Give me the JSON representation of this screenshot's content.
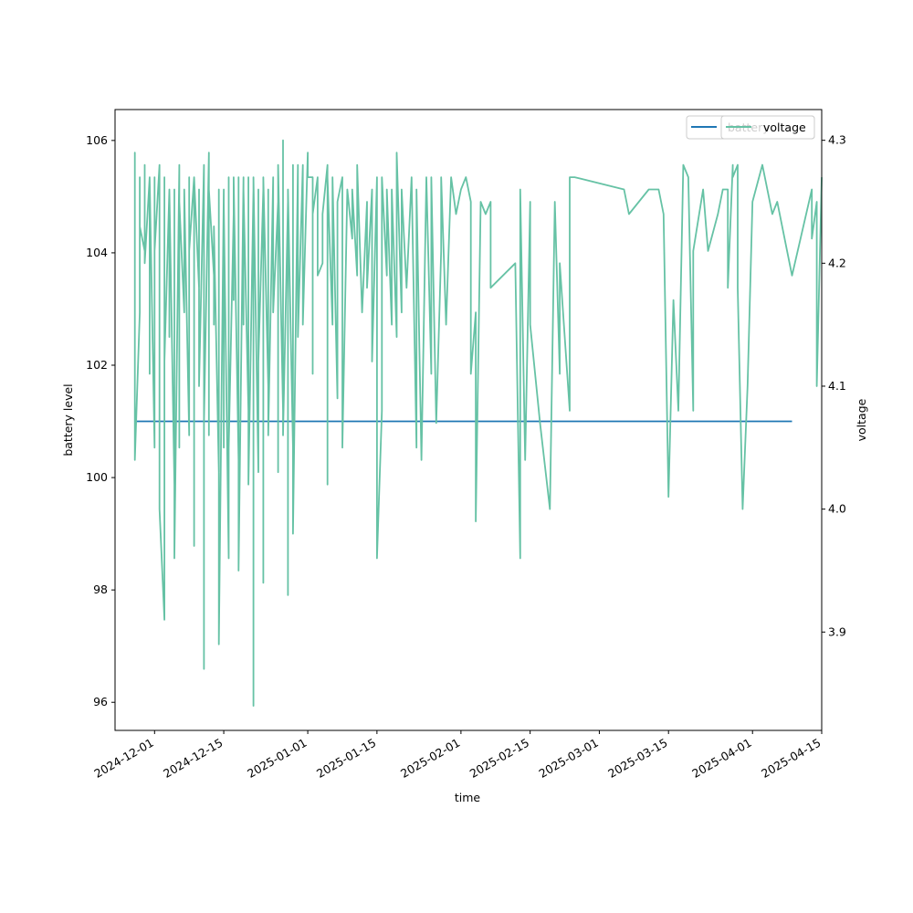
{
  "chart_data": {
    "type": "line",
    "xlabel": "time",
    "ylabel": "battery level",
    "y2label": "voltage",
    "xlim": [
      "2024-11-23",
      "2025-04-15"
    ],
    "ylim": [
      95.5,
      106.55
    ],
    "y2lim": [
      3.82,
      4.325
    ],
    "x_ticks": [
      "2024-12-01",
      "2024-12-15",
      "2025-01-01",
      "2025-01-15",
      "2025-02-01",
      "2025-02-15",
      "2025-03-01",
      "2025-03-15",
      "2025-04-01",
      "2025-04-15"
    ],
    "y_ticks": [
      96,
      98,
      100,
      102,
      104,
      106
    ],
    "y2_ticks": [
      "3.9",
      "4.0",
      "4.1",
      "4.2",
      "4.3"
    ],
    "legend": {
      "position": "top-right",
      "entries": [
        "battery",
        "voltage"
      ]
    },
    "grid": false,
    "series": [
      {
        "name": "battery",
        "axis": "left",
        "color": "#1f77b4",
        "points": [
          [
            "2024-11-27",
            101.0
          ],
          [
            "2025-04-09",
            101.0
          ]
        ]
      },
      {
        "name": "voltage",
        "axis": "right",
        "color": "#66c2a5",
        "points": [
          [
            "2024-11-27",
            4.19
          ],
          [
            "2024-11-27",
            4.29
          ],
          [
            "2024-11-27",
            4.04
          ],
          [
            "2024-11-28",
            4.16
          ],
          [
            "2024-11-28",
            4.27
          ],
          [
            "2024-11-28",
            4.23
          ],
          [
            "2024-11-29",
            4.21
          ],
          [
            "2024-11-29",
            4.28
          ],
          [
            "2024-11-29",
            4.2
          ],
          [
            "2024-11-30",
            4.27
          ],
          [
            "2024-11-30",
            4.11
          ],
          [
            "2024-11-30",
            4.27
          ],
          [
            "2024-12-01",
            4.05
          ],
          [
            "2024-12-01",
            4.27
          ],
          [
            "2024-12-01",
            4.21
          ],
          [
            "2024-12-02",
            4.28
          ],
          [
            "2024-12-02",
            4.23
          ],
          [
            "2024-12-02",
            4.0
          ],
          [
            "2024-12-03",
            3.91
          ],
          [
            "2024-12-03",
            4.22
          ],
          [
            "2024-12-03",
            4.27
          ],
          [
            "2024-12-03",
            4.12
          ],
          [
            "2024-12-04",
            4.26
          ],
          [
            "2024-12-04",
            4.14
          ],
          [
            "2024-12-04",
            4.26
          ],
          [
            "2024-12-05",
            4.02
          ],
          [
            "2024-12-05",
            4.26
          ],
          [
            "2024-12-05",
            3.96
          ],
          [
            "2024-12-06",
            4.28
          ],
          [
            "2024-12-06",
            4.05
          ],
          [
            "2024-12-06",
            4.25
          ],
          [
            "2024-12-07",
            4.16
          ],
          [
            "2024-12-07",
            4.26
          ],
          [
            "2024-12-08",
            4.06
          ],
          [
            "2024-12-08",
            4.27
          ],
          [
            "2024-12-08",
            4.21
          ],
          [
            "2024-12-09",
            4.27
          ],
          [
            "2024-12-09",
            3.97
          ],
          [
            "2024-12-09",
            4.27
          ],
          [
            "2024-12-10",
            4.18
          ],
          [
            "2024-12-10",
            4.26
          ],
          [
            "2024-12-10",
            4.1
          ],
          [
            "2024-12-11",
            4.28
          ],
          [
            "2024-12-11",
            3.87
          ],
          [
            "2024-12-11",
            4.25
          ],
          [
            "2024-12-11",
            4.07
          ],
          [
            "2024-12-12",
            4.29
          ],
          [
            "2024-12-12",
            4.06
          ],
          [
            "2024-12-12",
            4.26
          ],
          [
            "2024-12-13",
            4.19
          ],
          [
            "2024-12-13",
            4.15
          ],
          [
            "2024-12-13",
            4.23
          ],
          [
            "2024-12-14",
            4.03
          ],
          [
            "2024-12-14",
            4.26
          ],
          [
            "2024-12-14",
            3.89
          ],
          [
            "2024-12-15",
            4.26
          ],
          [
            "2024-12-15",
            4.05
          ],
          [
            "2024-12-15",
            4.25
          ],
          [
            "2024-12-16",
            3.96
          ],
          [
            "2024-12-16",
            4.27
          ],
          [
            "2024-12-16",
            4.05
          ],
          [
            "2024-12-17",
            4.24
          ],
          [
            "2024-12-17",
            4.17
          ],
          [
            "2024-12-17",
            4.27
          ],
          [
            "2024-12-18",
            4.04
          ],
          [
            "2024-12-18",
            4.27
          ],
          [
            "2024-12-18",
            3.95
          ],
          [
            "2024-12-19",
            4.27
          ],
          [
            "2024-12-19",
            4.15
          ],
          [
            "2024-12-19",
            4.26
          ],
          [
            "2024-12-20",
            4.08
          ],
          [
            "2024-12-20",
            4.27
          ],
          [
            "2024-12-20",
            4.02
          ],
          [
            "2024-12-21",
            4.26
          ],
          [
            "2024-12-21",
            3.84
          ],
          [
            "2024-12-21",
            4.27
          ],
          [
            "2024-12-22",
            4.03
          ],
          [
            "2024-12-22",
            4.26
          ],
          [
            "2024-12-22",
            4.12
          ],
          [
            "2024-12-23",
            4.26
          ],
          [
            "2024-12-23",
            3.94
          ],
          [
            "2024-12-23",
            4.27
          ],
          [
            "2024-12-24",
            4.1
          ],
          [
            "2024-12-24",
            4.26
          ],
          [
            "2024-12-24",
            4.06
          ],
          [
            "2024-12-25",
            4.27
          ],
          [
            "2024-12-25",
            4.16
          ],
          [
            "2024-12-26",
            4.25
          ],
          [
            "2024-12-26",
            4.03
          ],
          [
            "2024-12-26",
            4.28
          ],
          [
            "2024-12-27",
            4.08
          ],
          [
            "2024-12-27",
            4.3
          ],
          [
            "2024-12-27",
            4.06
          ],
          [
            "2024-12-28",
            4.25
          ],
          [
            "2024-12-28",
            3.93
          ],
          [
            "2024-12-28",
            4.26
          ],
          [
            "2024-12-29",
            4.05
          ],
          [
            "2024-12-29",
            4.28
          ],
          [
            "2024-12-29",
            3.98
          ],
          [
            "2024-12-30",
            4.28
          ],
          [
            "2024-12-30",
            4.14
          ],
          [
            "2024-12-31",
            4.28
          ],
          [
            "2024-12-31",
            4.15
          ],
          [
            "2025-01-01",
            4.29
          ],
          [
            "2025-01-01",
            4.27
          ],
          [
            "2025-01-02",
            4.27
          ],
          [
            "2025-01-02",
            4.11
          ],
          [
            "2025-01-02",
            4.24
          ],
          [
            "2025-01-03",
            4.27
          ],
          [
            "2025-01-03",
            4.19
          ],
          [
            "2025-01-04",
            4.2
          ],
          [
            "2025-01-04",
            4.24
          ],
          [
            "2025-01-05",
            4.28
          ],
          [
            "2025-01-05",
            4.02
          ],
          [
            "2025-01-05",
            4.27
          ],
          [
            "2025-01-06",
            4.15
          ],
          [
            "2025-01-06",
            4.27
          ],
          [
            "2025-01-07",
            4.09
          ],
          [
            "2025-01-07",
            4.25
          ],
          [
            "2025-01-08",
            4.27
          ],
          [
            "2025-01-08",
            4.05
          ],
          [
            "2025-01-09",
            4.26
          ],
          [
            "2025-01-10",
            4.22
          ],
          [
            "2025-01-10",
            4.26
          ],
          [
            "2025-01-11",
            4.19
          ],
          [
            "2025-01-11",
            4.28
          ],
          [
            "2025-01-12",
            4.16
          ],
          [
            "2025-01-13",
            4.25
          ],
          [
            "2025-01-13",
            4.18
          ],
          [
            "2025-01-14",
            4.26
          ],
          [
            "2025-01-14",
            4.12
          ],
          [
            "2025-01-15",
            4.27
          ],
          [
            "2025-01-15",
            3.96
          ],
          [
            "2025-01-16",
            4.08
          ],
          [
            "2025-01-16",
            4.27
          ],
          [
            "2025-01-17",
            4.19
          ],
          [
            "2025-01-17",
            4.26
          ],
          [
            "2025-01-18",
            4.15
          ],
          [
            "2025-01-18",
            4.26
          ],
          [
            "2025-01-19",
            4.14
          ],
          [
            "2025-01-19",
            4.29
          ],
          [
            "2025-01-20",
            4.16
          ],
          [
            "2025-01-20",
            4.26
          ],
          [
            "2025-01-21",
            4.18
          ],
          [
            "2025-01-22",
            4.27
          ],
          [
            "2025-01-23",
            4.05
          ],
          [
            "2025-01-23",
            4.26
          ],
          [
            "2025-01-24",
            4.04
          ],
          [
            "2025-01-25",
            4.27
          ],
          [
            "2025-01-26",
            4.11
          ],
          [
            "2025-01-26",
            4.27
          ],
          [
            "2025-01-27",
            4.07
          ],
          [
            "2025-01-28",
            4.21
          ],
          [
            "2025-01-28",
            4.27
          ],
          [
            "2025-01-29",
            4.15
          ],
          [
            "2025-01-30",
            4.27
          ],
          [
            "2025-01-31",
            4.24
          ],
          [
            "2025-02-01",
            4.26
          ],
          [
            "2025-02-02",
            4.27
          ],
          [
            "2025-02-03",
            4.25
          ],
          [
            "2025-02-03",
            4.11
          ],
          [
            "2025-02-04",
            4.16
          ],
          [
            "2025-02-04",
            3.99
          ],
          [
            "2025-02-05",
            4.25
          ],
          [
            "2025-02-06",
            4.24
          ],
          [
            "2025-02-07",
            4.25
          ],
          [
            "2025-02-07",
            4.18
          ],
          [
            "2025-02-12",
            4.2
          ],
          [
            "2025-02-13",
            3.96
          ],
          [
            "2025-02-13",
            4.26
          ],
          [
            "2025-02-14",
            4.04
          ],
          [
            "2025-02-15",
            4.25
          ],
          [
            "2025-02-15",
            4.15
          ],
          [
            "2025-02-17",
            4.07
          ],
          [
            "2025-02-19",
            4.0
          ],
          [
            "2025-02-20",
            4.25
          ],
          [
            "2025-02-21",
            4.11
          ],
          [
            "2025-02-21",
            4.2
          ],
          [
            "2025-02-23",
            4.08
          ],
          [
            "2025-02-23",
            4.27
          ],
          [
            "2025-02-24",
            4.27
          ],
          [
            "2025-03-06",
            4.26
          ],
          [
            "2025-03-07",
            4.24
          ],
          [
            "2025-03-11",
            4.26
          ],
          [
            "2025-03-13",
            4.26
          ],
          [
            "2025-03-14",
            4.24
          ],
          [
            "2025-03-15",
            4.01
          ],
          [
            "2025-03-16",
            4.17
          ],
          [
            "2025-03-17",
            4.08
          ],
          [
            "2025-03-18",
            4.28
          ],
          [
            "2025-03-19",
            4.27
          ],
          [
            "2025-03-20",
            4.08
          ],
          [
            "2025-03-20",
            4.21
          ],
          [
            "2025-03-22",
            4.26
          ],
          [
            "2025-03-23",
            4.21
          ],
          [
            "2025-03-25",
            4.24
          ],
          [
            "2025-03-26",
            4.26
          ],
          [
            "2025-03-27",
            4.26
          ],
          [
            "2025-03-27",
            4.18
          ],
          [
            "2025-03-28",
            4.28
          ],
          [
            "2025-03-28",
            4.27
          ],
          [
            "2025-03-29",
            4.28
          ],
          [
            "2025-03-29",
            4.18
          ],
          [
            "2025-03-30",
            4.0
          ],
          [
            "2025-03-31",
            4.1
          ],
          [
            "2025-04-01",
            4.25
          ],
          [
            "2025-04-03",
            4.28
          ],
          [
            "2025-04-05",
            4.24
          ],
          [
            "2025-04-06",
            4.25
          ],
          [
            "2025-04-08",
            4.21
          ],
          [
            "2025-04-09",
            4.19
          ],
          [
            "2025-04-13",
            4.26
          ],
          [
            "2025-04-13",
            4.22
          ],
          [
            "2025-04-14",
            4.25
          ],
          [
            "2025-04-14",
            4.1
          ],
          [
            "2025-04-15",
            4.27
          ]
        ]
      }
    ]
  }
}
